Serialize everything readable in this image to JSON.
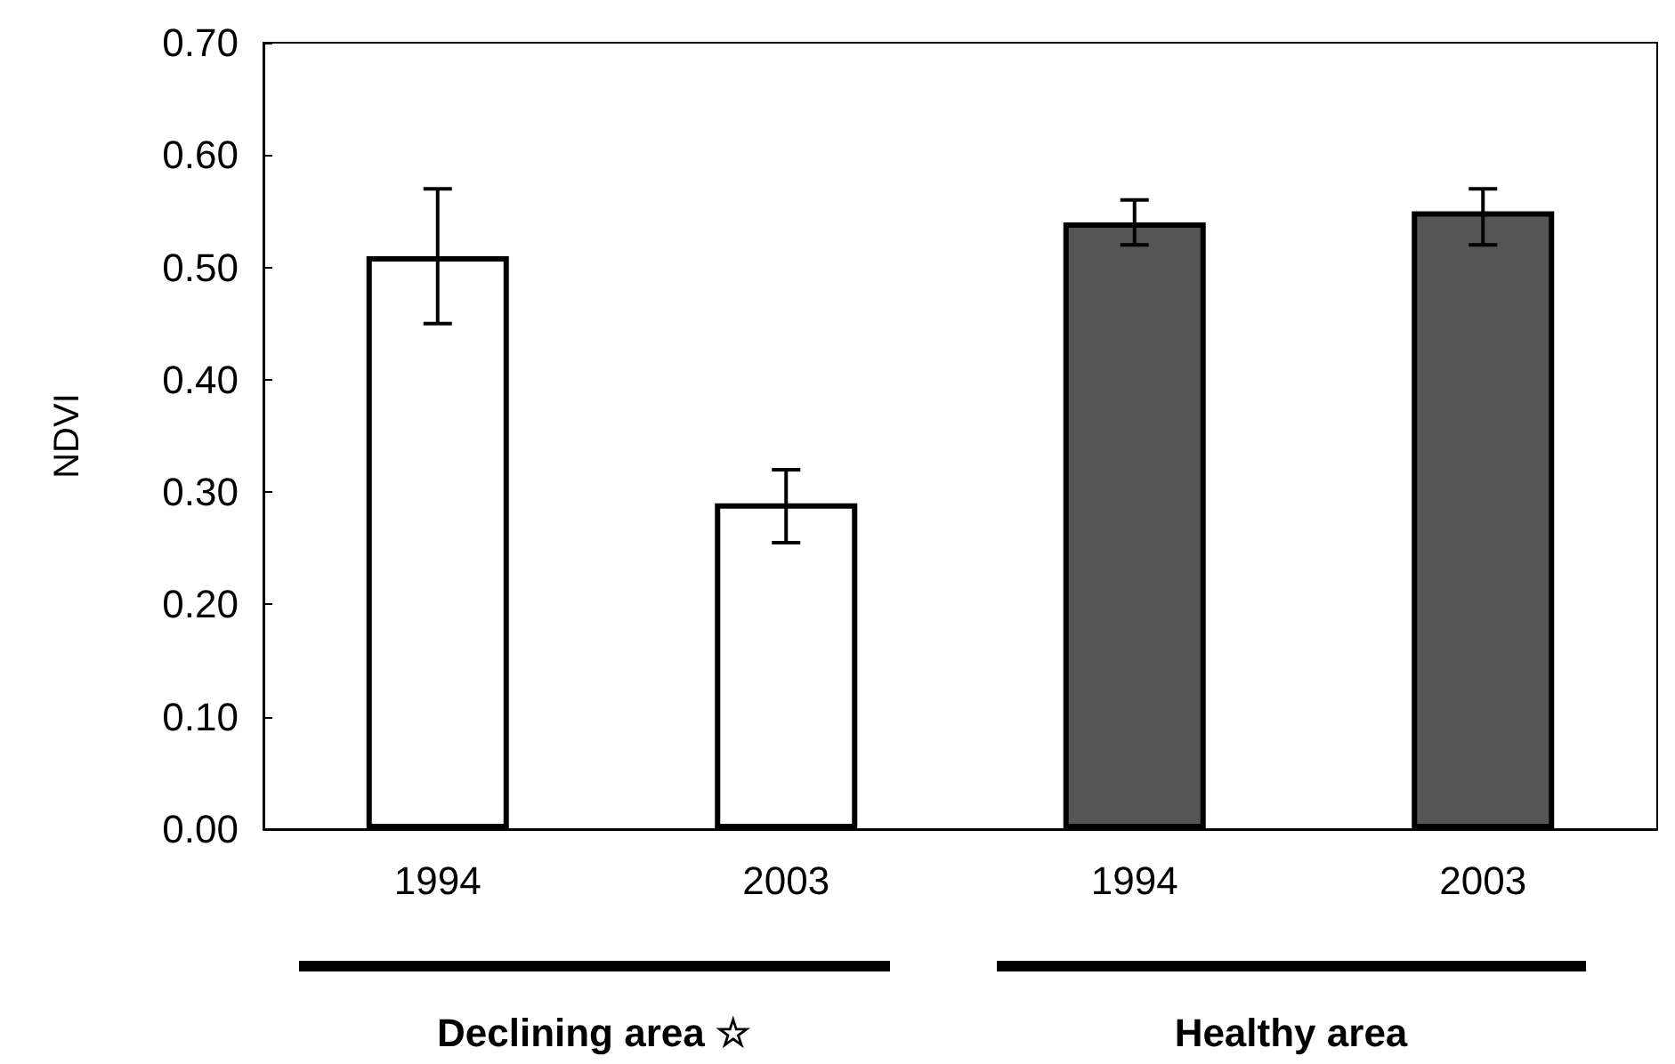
{
  "chart_data": {
    "type": "bar",
    "ylabel": "NDVI",
    "categories": [
      "1994",
      "2003",
      "1994",
      "2003"
    ],
    "values": [
      0.51,
      0.29,
      0.54,
      0.55
    ],
    "colors": [
      "#ffffff",
      "#ffffff",
      "#555555",
      "#555555"
    ],
    "errors": [
      [
        0.45,
        0.57
      ],
      [
        0.255,
        0.32
      ],
      [
        0.52,
        0.56
      ],
      [
        0.52,
        0.57
      ]
    ],
    "ylim": [
      0,
      0.7
    ],
    "yticks": [
      {
        "value": 0,
        "label": "0.00"
      },
      {
        "value": 0.1,
        "label": "0.10"
      },
      {
        "value": 0.2,
        "label": "0.20"
      },
      {
        "value": 0.3,
        "label": "0.30"
      },
      {
        "value": 0.4,
        "label": "0.40"
      },
      {
        "value": 0.5,
        "label": "0.50"
      },
      {
        "value": 0.6,
        "label": "0.60"
      },
      {
        "value": 0.7,
        "label": "0.70"
      }
    ],
    "grid": false,
    "annotations": [
      "Declining area ☆",
      "Healthy area"
    ]
  }
}
